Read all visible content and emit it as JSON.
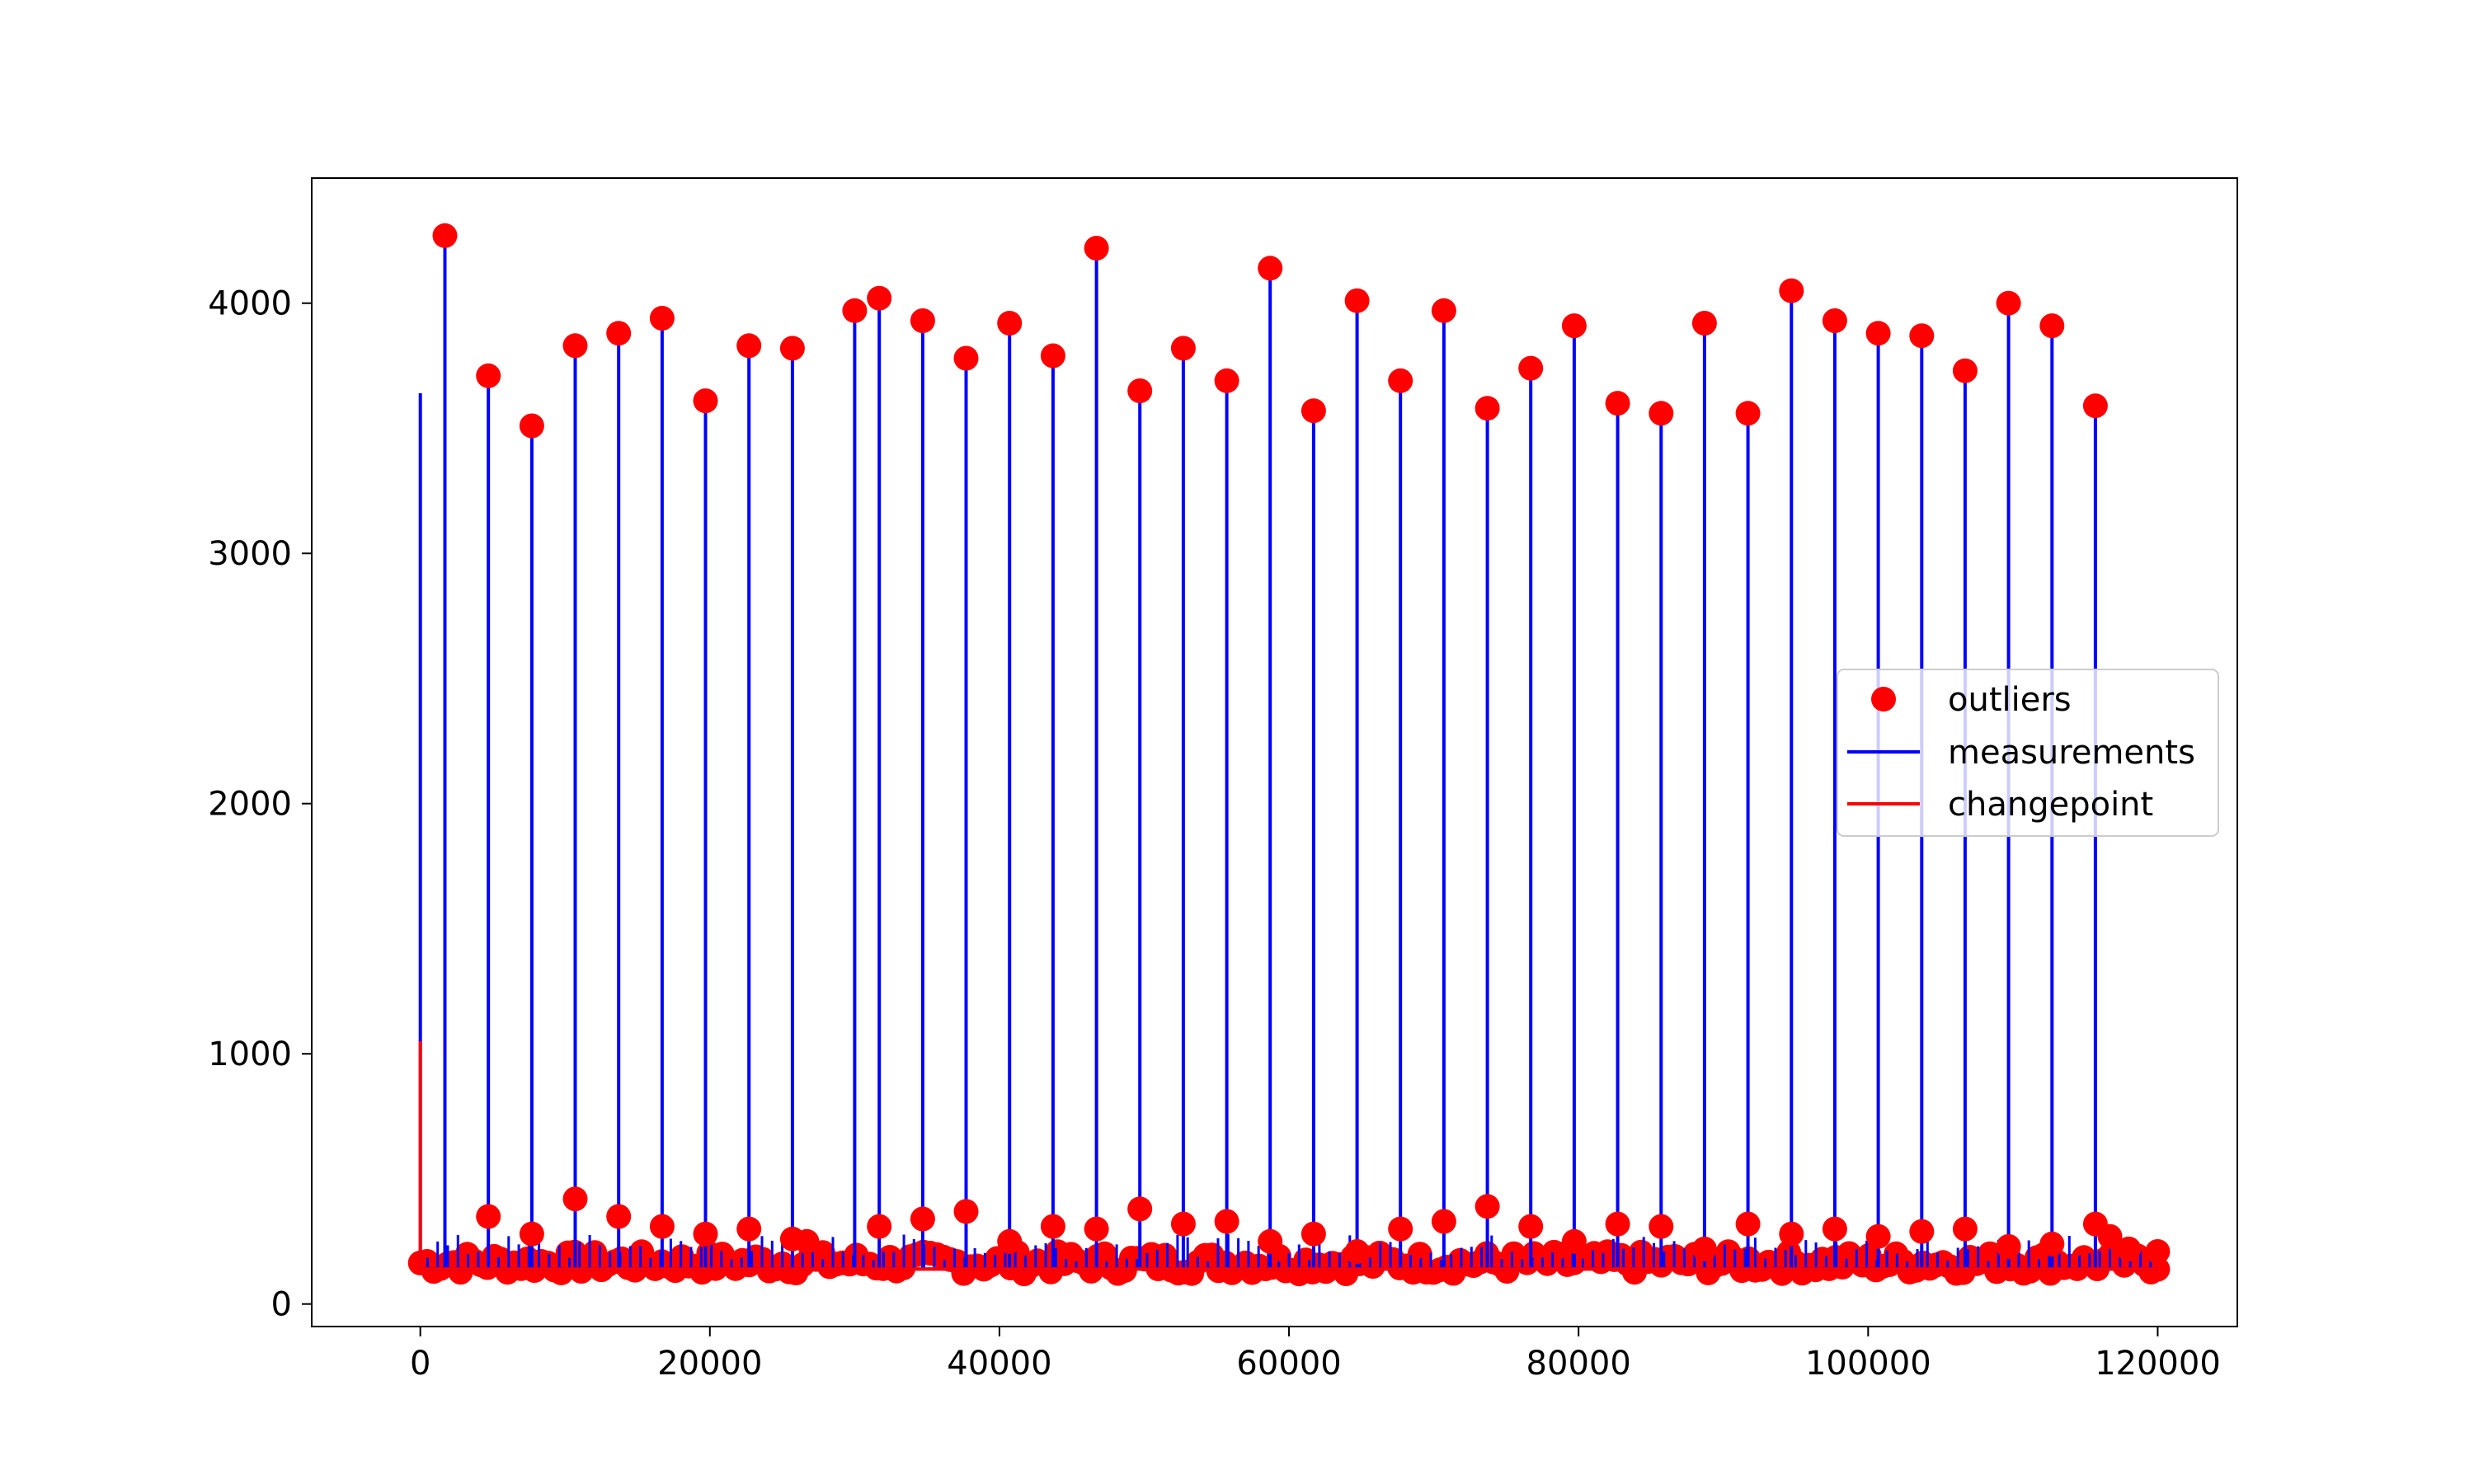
{
  "chart_data": {
    "type": "line",
    "title": "",
    "xlabel": "",
    "ylabel": "",
    "xlim": [
      -7500,
      125500
    ],
    "ylim": [
      -90,
      4500
    ],
    "xticks": [
      0,
      20000,
      40000,
      60000,
      80000,
      100000,
      120000
    ],
    "xtick_labels": [
      "0",
      "20000",
      "40000",
      "60000",
      "80000",
      "100000",
      "120000"
    ],
    "yticks": [
      0,
      1000,
      2000,
      3000,
      4000
    ],
    "ytick_labels": [
      "0",
      "1000",
      "2000",
      "3000",
      "4000"
    ],
    "grid": false,
    "legend_position": "center-right",
    "baseline": 140,
    "series": [
      {
        "name": "measurements",
        "kind": "line",
        "color": "#0000ff",
        "spikes": [
          {
            "x": 0,
            "y": 3640
          },
          {
            "x": 1700,
            "y": 4270
          },
          {
            "x": 4700,
            "y": 3710
          },
          {
            "x": 7700,
            "y": 3510
          },
          {
            "x": 10700,
            "y": 3830
          },
          {
            "x": 13700,
            "y": 3880
          },
          {
            "x": 16700,
            "y": 3940
          },
          {
            "x": 19700,
            "y": 3610
          },
          {
            "x": 22700,
            "y": 3830
          },
          {
            "x": 25700,
            "y": 3820
          },
          {
            "x": 30000,
            "y": 3970
          },
          {
            "x": 31700,
            "y": 4020
          },
          {
            "x": 34700,
            "y": 3930
          },
          {
            "x": 37700,
            "y": 3780
          },
          {
            "x": 40700,
            "y": 3920
          },
          {
            "x": 43700,
            "y": 3790
          },
          {
            "x": 46700,
            "y": 4220
          },
          {
            "x": 49700,
            "y": 3650
          },
          {
            "x": 52700,
            "y": 3820
          },
          {
            "x": 55700,
            "y": 3690
          },
          {
            "x": 58700,
            "y": 4140
          },
          {
            "x": 61700,
            "y": 3570
          },
          {
            "x": 64700,
            "y": 4010
          },
          {
            "x": 67700,
            "y": 3690
          },
          {
            "x": 70700,
            "y": 3970
          },
          {
            "x": 73700,
            "y": 3580
          },
          {
            "x": 76700,
            "y": 3740
          },
          {
            "x": 79700,
            "y": 3910
          },
          {
            "x": 82700,
            "y": 3600
          },
          {
            "x": 85700,
            "y": 3560
          },
          {
            "x": 88700,
            "y": 3920
          },
          {
            "x": 91700,
            "y": 3560
          },
          {
            "x": 94700,
            "y": 4050
          },
          {
            "x": 97700,
            "y": 3930
          },
          {
            "x": 100700,
            "y": 3880
          },
          {
            "x": 103700,
            "y": 3870
          },
          {
            "x": 106700,
            "y": 3730
          },
          {
            "x": 109700,
            "y": 4000
          },
          {
            "x": 112700,
            "y": 3910
          },
          {
            "x": 115700,
            "y": 3590
          }
        ]
      },
      {
        "name": "outliers",
        "kind": "scatter",
        "color": "#ff0000",
        "points": [
          {
            "x": 1700,
            "y": 4270
          },
          {
            "x": 4700,
            "y": 3710
          },
          {
            "x": 7700,
            "y": 3510
          },
          {
            "x": 10700,
            "y": 3830
          },
          {
            "x": 13700,
            "y": 3880
          },
          {
            "x": 16700,
            "y": 3940
          },
          {
            "x": 19700,
            "y": 3610
          },
          {
            "x": 22700,
            "y": 3830
          },
          {
            "x": 25700,
            "y": 3820
          },
          {
            "x": 30000,
            "y": 3970
          },
          {
            "x": 31700,
            "y": 4020
          },
          {
            "x": 34700,
            "y": 3930
          },
          {
            "x": 37700,
            "y": 3780
          },
          {
            "x": 40700,
            "y": 3920
          },
          {
            "x": 43700,
            "y": 3790
          },
          {
            "x": 46700,
            "y": 4220
          },
          {
            "x": 49700,
            "y": 3650
          },
          {
            "x": 52700,
            "y": 3820
          },
          {
            "x": 55700,
            "y": 3690
          },
          {
            "x": 58700,
            "y": 4140
          },
          {
            "x": 61700,
            "y": 3570
          },
          {
            "x": 64700,
            "y": 4010
          },
          {
            "x": 67700,
            "y": 3690
          },
          {
            "x": 70700,
            "y": 3970
          },
          {
            "x": 73700,
            "y": 3580
          },
          {
            "x": 76700,
            "y": 3740
          },
          {
            "x": 79700,
            "y": 3910
          },
          {
            "x": 82700,
            "y": 3600
          },
          {
            "x": 85700,
            "y": 3560
          },
          {
            "x": 88700,
            "y": 3920
          },
          {
            "x": 91700,
            "y": 3560
          },
          {
            "x": 94700,
            "y": 4050
          },
          {
            "x": 97700,
            "y": 3930
          },
          {
            "x": 100700,
            "y": 3880
          },
          {
            "x": 103700,
            "y": 3870
          },
          {
            "x": 106700,
            "y": 3730
          },
          {
            "x": 109700,
            "y": 4000
          },
          {
            "x": 112700,
            "y": 3910
          },
          {
            "x": 115700,
            "y": 3590
          },
          {
            "x": 4700,
            "y": 350
          },
          {
            "x": 7700,
            "y": 280
          },
          {
            "x": 10700,
            "y": 420
          },
          {
            "x": 13700,
            "y": 350
          },
          {
            "x": 16700,
            "y": 310
          },
          {
            "x": 19700,
            "y": 280
          },
          {
            "x": 22700,
            "y": 300
          },
          {
            "x": 25700,
            "y": 260
          },
          {
            "x": 26700,
            "y": 250
          },
          {
            "x": 31700,
            "y": 310
          },
          {
            "x": 34700,
            "y": 340
          },
          {
            "x": 37700,
            "y": 370
          },
          {
            "x": 40700,
            "y": 250
          },
          {
            "x": 43700,
            "y": 310
          },
          {
            "x": 46700,
            "y": 300
          },
          {
            "x": 49700,
            "y": 380
          },
          {
            "x": 52700,
            "y": 320
          },
          {
            "x": 55700,
            "y": 330
          },
          {
            "x": 58700,
            "y": 250
          },
          {
            "x": 61700,
            "y": 280
          },
          {
            "x": 64700,
            "y": 210
          },
          {
            "x": 67700,
            "y": 300
          },
          {
            "x": 70700,
            "y": 330
          },
          {
            "x": 73700,
            "y": 390
          },
          {
            "x": 76700,
            "y": 310
          },
          {
            "x": 79700,
            "y": 250
          },
          {
            "x": 82700,
            "y": 320
          },
          {
            "x": 85700,
            "y": 310
          },
          {
            "x": 88700,
            "y": 220
          },
          {
            "x": 91700,
            "y": 320
          },
          {
            "x": 94700,
            "y": 280
          },
          {
            "x": 97700,
            "y": 300
          },
          {
            "x": 100700,
            "y": 270
          },
          {
            "x": 103700,
            "y": 290
          },
          {
            "x": 106700,
            "y": 300
          },
          {
            "x": 109700,
            "y": 230
          },
          {
            "x": 112700,
            "y": 240
          },
          {
            "x": 115700,
            "y": 320
          },
          {
            "x": 116700,
            "y": 270
          },
          {
            "x": 118000,
            "y": 220
          },
          {
            "x": 120000,
            "y": 210
          }
        ],
        "dense_band": {
          "x_start": 0,
          "x_end": 120000,
          "y_low": 120,
          "y_high": 210,
          "count": 260
        }
      },
      {
        "name": "changepoint",
        "kind": "line",
        "color": "#ff0000",
        "points": [
          {
            "x": 0,
            "y": 1050
          },
          {
            "x": 0,
            "y": 140
          },
          {
            "x": 120000,
            "y": 140
          }
        ]
      }
    ]
  },
  "legend": {
    "items": [
      {
        "label": "outliers",
        "marker": "circle",
        "color": "#ff0000"
      },
      {
        "label": "measurements",
        "marker": "line",
        "color": "#0000ff"
      },
      {
        "label": "changepoint",
        "marker": "line",
        "color": "#ff0000"
      }
    ]
  }
}
